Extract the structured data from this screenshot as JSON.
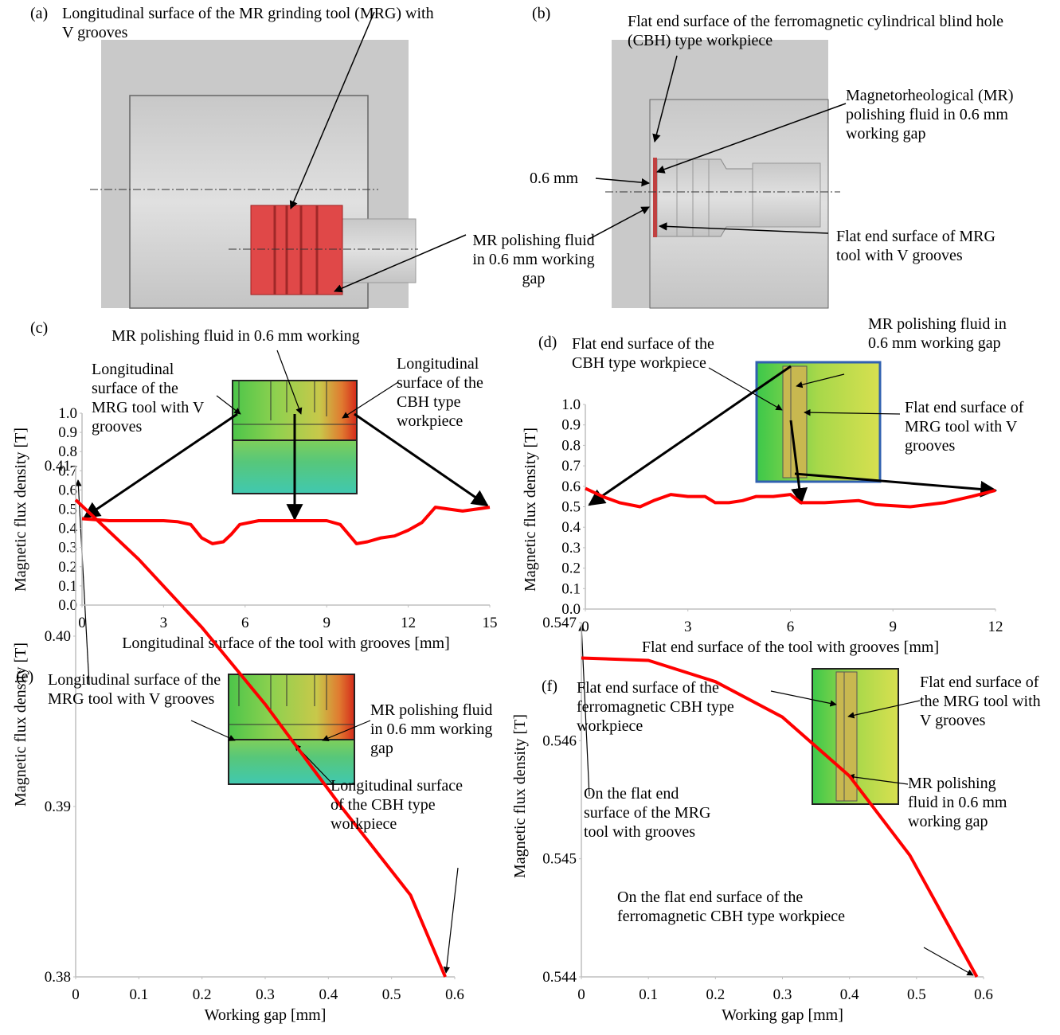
{
  "diagrams": [
    {
      "label": "(a)",
      "annotations": [
        "Longitudinal surface of the MR grinding tool (MRG) with V grooves",
        "MR polishing fluid in 0.6 mm working gap"
      ]
    },
    {
      "label": "(b)",
      "annotations": [
        "Flat end surface of the ferromagnetic cylindrical blind hole (CBH) type workpiece",
        "Magnetorheological (MR) polishing fluid in 0.6 mm working gap",
        "0.6 mm",
        "Flat end surface of MRG tool with V grooves"
      ]
    }
  ],
  "chart_data": [
    {
      "type": "line",
      "label": "(c)",
      "xlabel": "Longitudinal surface of the tool with grooves [mm]",
      "ylabel": "Magnetic flux density [T]",
      "annotations": [
        "MR polishing fluid in 0.6 mm working",
        "Longitudinal surface of the MRG tool with V grooves",
        "Longitudinal surface of the CBH type workpiece"
      ],
      "x": [
        0,
        0.5,
        1,
        2,
        3,
        3.5,
        4,
        4.4,
        4.8,
        5.2,
        5.5,
        5.8,
        6.5,
        7,
        8,
        9,
        9.5,
        9.8,
        10.1,
        10.5,
        11,
        11.5,
        12,
        12.5,
        13,
        13.5,
        14,
        14.5,
        15
      ],
      "series": [
        {
          "color": "#ff0000",
          "values": [
            0.45,
            0.445,
            0.44,
            0.44,
            0.44,
            0.435,
            0.42,
            0.35,
            0.32,
            0.33,
            0.37,
            0.42,
            0.44,
            0.44,
            0.44,
            0.44,
            0.42,
            0.37,
            0.32,
            0.33,
            0.35,
            0.36,
            0.39,
            0.43,
            0.51,
            0.5,
            0.49,
            0.5,
            0.51
          ]
        }
      ],
      "xlim": [
        0,
        15
      ],
      "xticks": [
        0,
        3,
        6,
        9,
        12,
        15
      ],
      "ylim": [
        0,
        1
      ],
      "yticks": [
        {
          "value": 0,
          "label": "0.0"
        },
        0.1,
        0.2,
        0.3,
        0.4,
        0.5,
        0.6,
        0.7,
        0.8,
        0.9,
        {
          "value": 1,
          "label": "1.0"
        }
      ]
    },
    {
      "type": "line",
      "label": "(d)",
      "xlabel": "Flat end surface of the tool with grooves [mm]",
      "ylabel": "Magnetic flux density [T]",
      "annotations": [
        "Flat end surface of the CBH type workpiece",
        "MR polishing fluid in 0.6 mm working gap",
        "Flat end surface of MRG tool with V grooves"
      ],
      "x": [
        0,
        0.5,
        1,
        1.6,
        2,
        2.5,
        3,
        3.5,
        3.8,
        4.2,
        4.6,
        5,
        5.5,
        6,
        6.3,
        7,
        8,
        8.5,
        9.5,
        10.5,
        11.3,
        12
      ],
      "series": [
        {
          "color": "#ff0000",
          "values": [
            0.59,
            0.55,
            0.52,
            0.5,
            0.53,
            0.56,
            0.55,
            0.55,
            0.52,
            0.52,
            0.53,
            0.55,
            0.55,
            0.56,
            0.52,
            0.52,
            0.53,
            0.51,
            0.5,
            0.52,
            0.55,
            0.58
          ]
        }
      ],
      "xlim": [
        0,
        12
      ],
      "xticks": [
        0,
        3,
        6,
        9,
        12
      ],
      "ylim": [
        0,
        1
      ],
      "yticks": [
        {
          "value": 0,
          "label": "0.0"
        },
        0.1,
        0.2,
        0.3,
        0.4,
        0.5,
        0.6,
        0.7,
        0.8,
        0.9,
        {
          "value": 1,
          "label": "1.0"
        }
      ]
    },
    {
      "type": "line",
      "label": "(e)",
      "xlabel": "Working gap [mm]",
      "ylabel": "Magnetic flux density [T]",
      "annotations": [
        "Longitudinal surface of the MRG tool with V grooves",
        "MR polishing fluid in 0.6 mm working gap",
        "Longitudinal surface of the CBH type workpiece"
      ],
      "x": [
        0,
        0.1,
        0.2,
        0.3,
        0.42,
        0.53,
        0.585
      ],
      "series": [
        {
          "color": "#ff0000",
          "values": [
            0.408,
            0.4045,
            0.4005,
            0.396,
            0.39,
            0.3848,
            0.38
          ]
        }
      ],
      "xlim": [
        0,
        0.6
      ],
      "xticks": [
        0,
        0.1,
        0.2,
        0.3,
        0.4,
        0.5,
        0.6
      ],
      "ylim": [
        0.38,
        0.41
      ],
      "yticks": [
        0.38,
        0.39,
        {
          "value": 0.4,
          "label": "0.40"
        },
        0.41
      ]
    },
    {
      "type": "line",
      "label": "(f)",
      "xlabel": "Working gap [mm]",
      "ylabel": "Magnetic flux density [T]",
      "annotations": [
        "Flat end surface of the ferromagnetic CBH type workpiece",
        "Flat end surface of the MRG tool with V grooves",
        "MR polishing fluid in 0.6 mm working gap",
        "On the flat end surface of the MRG tool with grooves",
        "On the flat end surface of the ferromagnetic CBH type workpiece"
      ],
      "x": [
        0,
        0.1,
        0.2,
        0.3,
        0.4,
        0.49,
        0.59
      ],
      "series": [
        {
          "color": "#ff0000",
          "values": [
            0.5467,
            0.54668,
            0.5465,
            0.5462,
            0.5457,
            0.54503,
            0.544
          ]
        }
      ],
      "xlim": [
        0,
        0.6
      ],
      "xticks": [
        0,
        0.1,
        0.2,
        0.3,
        0.4,
        0.5,
        0.6
      ],
      "ylim": [
        0.544,
        0.547
      ],
      "yticks": [
        0.544,
        0.545,
        0.546,
        0.547
      ]
    }
  ]
}
